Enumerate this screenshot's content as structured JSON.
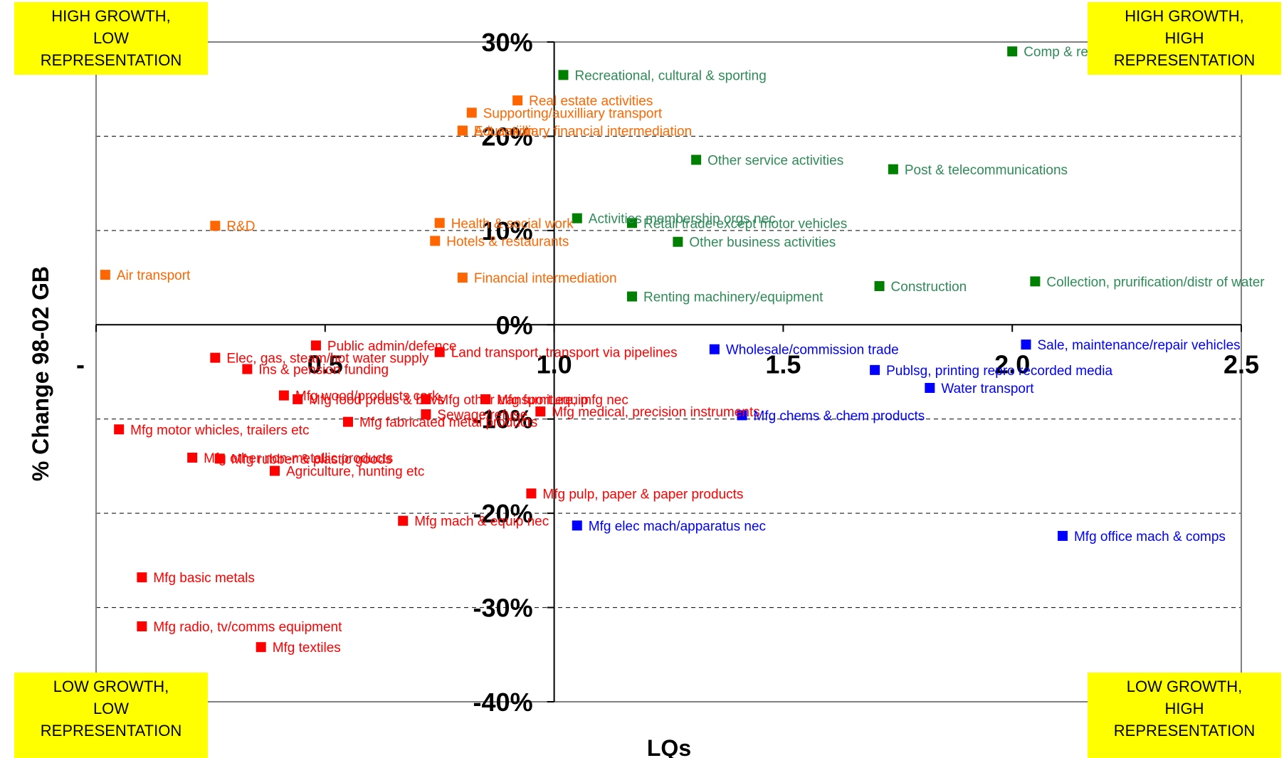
{
  "quadrants": {
    "top_left": [
      "HIGH GROWTH,",
      "LOW",
      "REPRESENTATION"
    ],
    "top_right": [
      "HIGH GROWTH,",
      "HIGH",
      "REPRESENTATION"
    ],
    "bottom_left": [
      "LOW GROWTH,",
      "LOW",
      "REPRESENTATION"
    ],
    "bottom_right": [
      "LOW GROWTH,",
      "HIGH",
      "REPRESENTATION"
    ]
  },
  "chart_data": {
    "type": "scatter",
    "title": "",
    "xlabel": "LQs",
    "ylabel": "% Change 98-02 GB",
    "xlim": [
      0,
      2.5
    ],
    "ylim": [
      -40,
      30
    ],
    "x_ticks": [
      {
        "value": 0,
        "label": "-"
      },
      {
        "value": 0.5,
        "label": "0.5"
      },
      {
        "value": 1.0,
        "label": "1.0"
      },
      {
        "value": 1.5,
        "label": "1.5"
      },
      {
        "value": 2.0,
        "label": "2.0"
      },
      {
        "value": 2.5,
        "label": "2.5"
      }
    ],
    "y_ticks": [
      {
        "value": 30,
        "label": "30%"
      },
      {
        "value": 20,
        "label": "20%"
      },
      {
        "value": 10,
        "label": "10%"
      },
      {
        "value": 0,
        "label": "0%"
      },
      {
        "value": -10,
        "label": "-10%"
      },
      {
        "value": -20,
        "label": "-20%"
      },
      {
        "value": -30,
        "label": "-30%"
      },
      {
        "value": -40,
        "label": "-40%"
      }
    ],
    "grid": "horizontal dashed",
    "colors": {
      "green": "#008000",
      "orange": "#ff6600",
      "red": "#ff0000",
      "blue": "#0000ff",
      "label_green": "#2e8b57",
      "label_orange": "#ff6600",
      "label_red": "#ff0000",
      "label_blue": "#0000ff",
      "quadrant_box": "#ffff00"
    },
    "points": [
      {
        "label": "Comp & related activities",
        "x": 2.0,
        "y": 29.0,
        "color": "green"
      },
      {
        "label": "Recreational, cultural & sporting",
        "x": 1.02,
        "y": 26.5,
        "color": "green"
      },
      {
        "label": "Other service activities",
        "x": 1.31,
        "y": 17.5,
        "color": "green"
      },
      {
        "label": "Post & telecommunications",
        "x": 1.74,
        "y": 16.5,
        "color": "green"
      },
      {
        "label": "Activities membership orgs nec",
        "x": 1.05,
        "y": 11.3,
        "color": "green"
      },
      {
        "label": "Retail trade except motor vehicles",
        "x": 1.17,
        "y": 10.8,
        "color": "green"
      },
      {
        "label": "Other business activities",
        "x": 1.27,
        "y": 8.8,
        "color": "green"
      },
      {
        "label": "Collection, prurification/distr of water",
        "x": 2.05,
        "y": 4.6,
        "color": "green"
      },
      {
        "label": "Construction",
        "x": 1.71,
        "y": 4.1,
        "color": "green"
      },
      {
        "label": "Renting machinery/equipment",
        "x": 1.17,
        "y": 3.0,
        "color": "green"
      },
      {
        "label": "Real estate activities",
        "x": 0.92,
        "y": 23.8,
        "color": "orange"
      },
      {
        "label": "Supporting/auxilliary transport",
        "x": 0.82,
        "y": 22.5,
        "color": "orange"
      },
      {
        "label": "Act auxilliary financial intermediation",
        "x": 0.8,
        "y": 20.6,
        "color": "orange"
      },
      {
        "label": "Education",
        "x": 0.8,
        "y": 20.6,
        "color": "orange"
      },
      {
        "label": "Health & social work",
        "x": 0.75,
        "y": 10.8,
        "color": "orange"
      },
      {
        "label": "R&D",
        "x": 0.26,
        "y": 10.5,
        "color": "orange"
      },
      {
        "label": "Hotels & restaurants",
        "x": 0.74,
        "y": 8.9,
        "color": "orange"
      },
      {
        "label": "Air transport",
        "x": 0.02,
        "y": 5.3,
        "color": "orange"
      },
      {
        "label": "Financial intermediation",
        "x": 0.8,
        "y": 5.0,
        "color": "orange"
      },
      {
        "label": "Public admin/defence",
        "x": 0.48,
        "y": -2.2,
        "color": "red"
      },
      {
        "label": "Land transport, transport via pipelines",
        "x": 0.75,
        "y": -2.9,
        "color": "red"
      },
      {
        "label": "Elec, gas, steam/hot water supply",
        "x": 0.26,
        "y": -3.5,
        "color": "red"
      },
      {
        "label": "Ins & pension funding",
        "x": 0.33,
        "y": -4.7,
        "color": "red"
      },
      {
        "label": "Mfg wood/products cork",
        "x": 0.41,
        "y": -7.5,
        "color": "red"
      },
      {
        "label": "Mfg food prods & bevs",
        "x": 0.44,
        "y": -7.9,
        "color": "red"
      },
      {
        "label": "Mfg other transport equip",
        "x": 0.72,
        "y": -7.9,
        "color": "red"
      },
      {
        "label": "Mfg furniture; mfg nec",
        "x": 0.85,
        "y": -7.9,
        "color": "red"
      },
      {
        "label": "Sewage/refuse",
        "x": 0.72,
        "y": -9.5,
        "color": "red"
      },
      {
        "label": "Mfg medical, precision instruments",
        "x": 0.97,
        "y": -9.2,
        "color": "red"
      },
      {
        "label": "Mfg motor whicles, trailers etc",
        "x": 0.05,
        "y": -11.1,
        "color": "red"
      },
      {
        "label": "Mfg fabricated metal products",
        "x": 0.55,
        "y": -10.3,
        "color": "red"
      },
      {
        "label": "Mfg rubber & plastic goods",
        "x": 0.27,
        "y": -14.2,
        "color": "red"
      },
      {
        "label": "Mfg other non-metallic products",
        "x": 0.21,
        "y": -14.1,
        "color": "red"
      },
      {
        "label": "Agriculture, hunting etc",
        "x": 0.39,
        "y": -15.5,
        "color": "red"
      },
      {
        "label": "Mfg pulp, paper & paper products",
        "x": 0.95,
        "y": -17.9,
        "color": "red"
      },
      {
        "label": "Mfg mach & equip nec",
        "x": 0.67,
        "y": -20.8,
        "color": "red"
      },
      {
        "label": "Mfg basic metals",
        "x": 0.1,
        "y": -26.8,
        "color": "red"
      },
      {
        "label": "Mfg radio, tv/comms equipment",
        "x": 0.1,
        "y": -32.0,
        "color": "red"
      },
      {
        "label": "Mfg textiles",
        "x": 0.36,
        "y": -34.2,
        "color": "red"
      },
      {
        "label": "Sale, maintenance/repair vehicles",
        "x": 2.03,
        "y": -2.1,
        "color": "blue"
      },
      {
        "label": "Wholesale/commission trade",
        "x": 1.35,
        "y": -2.6,
        "color": "blue"
      },
      {
        "label": "Publsg, printing repro recorded media",
        "x": 1.7,
        "y": -4.8,
        "color": "blue"
      },
      {
        "label": "Water transport",
        "x": 1.82,
        "y": -6.7,
        "color": "blue"
      },
      {
        "label": "Mfg chems & chem products",
        "x": 1.41,
        "y": -9.6,
        "color": "blue"
      },
      {
        "label": "Mfg elec mach/apparatus nec",
        "x": 1.05,
        "y": -21.3,
        "color": "blue"
      },
      {
        "label": "Mfg office mach & comps",
        "x": 2.11,
        "y": -22.4,
        "color": "blue"
      }
    ]
  }
}
